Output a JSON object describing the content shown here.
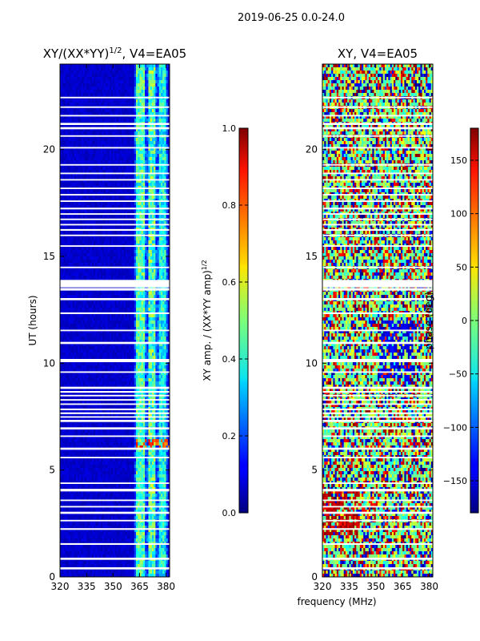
{
  "chart_data": {
    "type": "heatmap",
    "suptitle": "2019-06-25 0.0-24.0",
    "xlabel": "frequency (MHz)",
    "panels": [
      {
        "id": "amp",
        "title": "XY/(XX*YY)",
        "title_sup": "1/2",
        "title_tail": ", V4=EA05",
        "ylabel": "UT (hours)",
        "xlim": [
          320,
          382
        ],
        "ylim": [
          0,
          24
        ],
        "xticks": [
          320,
          335,
          350,
          365,
          380
        ],
        "yticks": [
          0,
          5,
          10,
          15,
          20
        ],
        "colorbar": {
          "label": "XY amp. / (XX*YY amp)",
          "label_sup": "1/2",
          "range": [
            0.0,
            1.0
          ],
          "ticks": [
            "0.0",
            "0.2",
            "0.4",
            "0.6",
            "0.8",
            "1.0"
          ]
        },
        "description": "Mostly low amplitude (~0.05) below 362 MHz; elevated 0.3-0.6 in bands at 363-368, 370-374 and 376-380 MHz"
      },
      {
        "id": "phase",
        "title": "XY, V4=EA05",
        "title_sup": "",
        "title_tail": "",
        "ylabel": "",
        "xlim": [
          320,
          382
        ],
        "ylim": [
          0,
          24
        ],
        "xticks": [
          320,
          335,
          350,
          365,
          380
        ],
        "yticks": [
          0,
          5,
          10,
          15,
          20
        ],
        "colorbar": {
          "label": "phase (deg)",
          "label_sup": "",
          "range": [
            -180,
            180
          ],
          "ticks": [
            "150",
            "100",
            "50",
            "0",
            "−50",
            "−100",
            "−150"
          ],
          "tick_values": [
            150,
            100,
            50,
            0,
            -50,
            -100,
            -150
          ]
        },
        "description": "Phase values scattered across full -180 to 180 range, mostly near 0 with red/blue clusters"
      }
    ],
    "flagged_gaps_hours": [
      [
        0.35,
        0.45
      ],
      [
        0.8,
        0.9
      ],
      [
        1.5,
        1.58
      ],
      [
        2.2,
        2.28
      ],
      [
        2.6,
        2.67
      ],
      [
        2.95,
        3.05
      ],
      [
        3.25,
        3.32
      ],
      [
        3.55,
        3.62
      ],
      [
        4.0,
        4.12
      ],
      [
        4.35,
        4.42
      ],
      [
        5.55,
        5.62
      ],
      [
        5.95,
        6.05
      ],
      [
        6.55,
        6.62
      ],
      [
        6.9,
        7.0
      ],
      [
        7.25,
        7.35
      ],
      [
        7.45,
        7.52
      ],
      [
        7.62,
        7.7
      ],
      [
        7.8,
        7.88
      ],
      [
        8.05,
        8.12
      ],
      [
        8.25,
        8.32
      ],
      [
        8.45,
        8.52
      ],
      [
        8.62,
        8.7
      ],
      [
        8.8,
        8.9
      ],
      [
        9.55,
        9.62
      ],
      [
        10.05,
        10.2
      ],
      [
        10.9,
        11.0
      ],
      [
        11.5,
        11.57
      ],
      [
        12.3,
        12.38
      ],
      [
        12.95,
        13.05
      ],
      [
        13.4,
        13.52
      ],
      [
        13.55,
        13.9
      ],
      [
        14.45,
        14.52
      ],
      [
        15.45,
        15.52
      ],
      [
        15.95,
        16.02
      ],
      [
        16.2,
        16.28
      ],
      [
        16.45,
        16.52
      ],
      [
        16.7,
        16.77
      ],
      [
        16.95,
        17.02
      ],
      [
        17.2,
        17.28
      ],
      [
        17.55,
        17.62
      ],
      [
        17.85,
        17.92
      ],
      [
        18.15,
        18.22
      ],
      [
        18.55,
        18.62
      ],
      [
        18.85,
        18.92
      ],
      [
        19.25,
        19.32
      ],
      [
        20.05,
        20.12
      ],
      [
        20.6,
        20.67
      ],
      [
        20.95,
        21.05
      ],
      [
        21.15,
        21.25
      ],
      [
        21.55,
        21.62
      ],
      [
        21.95,
        22.02
      ],
      [
        22.4,
        22.47
      ]
    ]
  }
}
